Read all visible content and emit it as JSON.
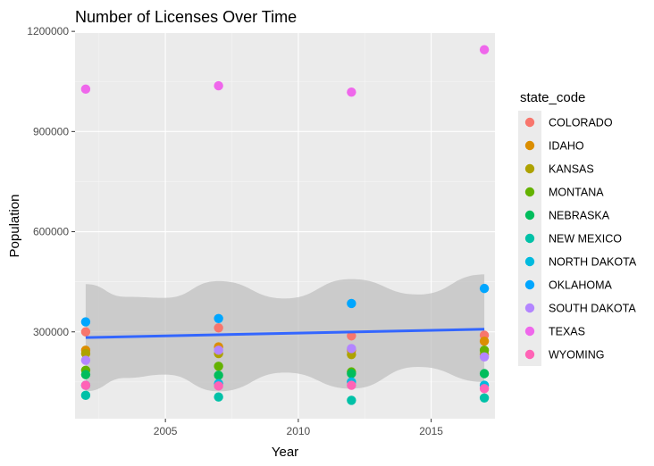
{
  "chart_data": {
    "type": "scatter",
    "title": "Number of Licenses Over Time",
    "xlabel": "Year",
    "ylabel": "Population",
    "xlim": [
      2001.6,
      2017.4
    ],
    "ylim": [
      40000,
      1195000
    ],
    "x_ticks": [
      2005,
      2010,
      2015
    ],
    "y_ticks": [
      300000,
      600000,
      900000,
      1200000
    ],
    "minor_y": [
      150000,
      450000,
      750000,
      1050000
    ],
    "minor_x": [
      2002.5,
      2007.5,
      2012.5,
      2017.5
    ],
    "grid": true,
    "legend_title": "state_code",
    "legend_position": "right",
    "x": [
      2002,
      2007,
      2012,
      2017
    ],
    "series": [
      {
        "name": "COLORADO",
        "color": "#F8766D",
        "values": [
          300000,
          312000,
          288000,
          290000
        ]
      },
      {
        "name": "IDAHO",
        "color": "#DB8E00",
        "values": [
          245000,
          255000,
          245000,
          272000
        ]
      },
      {
        "name": "KANSAS",
        "color": "#AEA200",
        "values": [
          235000,
          235000,
          232000,
          232000
        ]
      },
      {
        "name": "MONTANA",
        "color": "#64B200",
        "values": [
          185000,
          197000,
          180000,
          245000
        ]
      },
      {
        "name": "NEBRASKA",
        "color": "#00BD5C",
        "values": [
          172000,
          170000,
          175000,
          175000
        ]
      },
      {
        "name": "NEW MEXICO",
        "color": "#00C1A7",
        "values": [
          110000,
          105000,
          95000,
          102000
        ]
      },
      {
        "name": "NORTH DAKOTA",
        "color": "#00BADE",
        "values": [
          140000,
          145000,
          150000,
          140000
        ]
      },
      {
        "name": "OKLAHOMA",
        "color": "#00A6FF",
        "values": [
          330000,
          340000,
          385000,
          430000
        ]
      },
      {
        "name": "SOUTH DAKOTA",
        "color": "#B385FF",
        "values": [
          215000,
          245000,
          250000,
          225000
        ]
      },
      {
        "name": "TEXAS",
        "color": "#EF67EB",
        "values": [
          1027000,
          1037000,
          1018000,
          1145000
        ]
      },
      {
        "name": "WYOMING",
        "color": "#FF63B6",
        "values": [
          140000,
          138000,
          140000,
          130000
        ]
      }
    ],
    "trend": {
      "color": "#3366FF",
      "band_color": "#BEBEBE",
      "x": [
        2002,
        2017
      ],
      "y": [
        283000,
        308000
      ],
      "band": [
        {
          "x": 2002,
          "upper": 443000,
          "lower": 122000
        },
        {
          "x": 2003.5,
          "upper": 405000,
          "lower": 162000
        },
        {
          "x": 2005,
          "upper": 402000,
          "lower": 172000
        },
        {
          "x": 2007,
          "upper": 452000,
          "lower": 122000
        },
        {
          "x": 2009.5,
          "upper": 400000,
          "lower": 178000
        },
        {
          "x": 2012,
          "upper": 458000,
          "lower": 130000
        },
        {
          "x": 2014.5,
          "upper": 412000,
          "lower": 195000
        },
        {
          "x": 2017,
          "upper": 472000,
          "lower": 150000
        }
      ]
    }
  }
}
